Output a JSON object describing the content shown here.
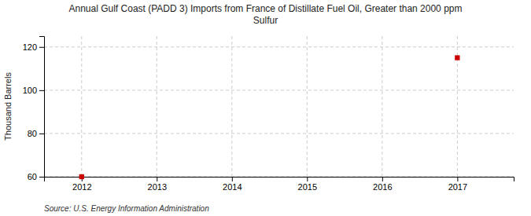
{
  "chart_data": {
    "type": "scatter",
    "title": "Annual Gulf Coast (PADD 3) Imports from France of Distillate Fuel Oil, Greater than 2000 ppm\nSulfur",
    "ylabel": "Thousand Barrels",
    "source": "Source: U.S. Energy Information Administration",
    "x": [
      2012,
      2017
    ],
    "values": [
      60,
      115
    ],
    "color": "#cc0000",
    "marker": "square",
    "xlim": [
      2011.5,
      2017.75
    ],
    "ylim": [
      60,
      125
    ],
    "xticks": [
      2012,
      2013,
      2014,
      2015,
      2016,
      2017
    ],
    "yticks": [
      60,
      80,
      100,
      120
    ],
    "grid": true
  }
}
